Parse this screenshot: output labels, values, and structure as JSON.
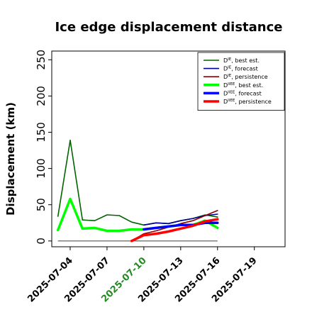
{
  "chart_data": {
    "type": "line",
    "title": "Ice edge displacement distance",
    "xlabel": "",
    "ylabel": "Displacement (km)",
    "ylim": [
      -8,
      262
    ],
    "xlim": [
      "2025-07-02T12:00",
      "2025-07-21T12:00"
    ],
    "yticks": [
      0,
      50,
      100,
      150,
      200,
      250
    ],
    "xticks": [
      "2025-07-04",
      "2025-07-07",
      "2025-07-10",
      "2025-07-13",
      "2025-07-16",
      "2025-07-19"
    ],
    "highlight_xtick": "2025-07-10",
    "highlight_color": "#228B22",
    "legend_position": "top-right",
    "baseline": {
      "name": "",
      "color": "#555555",
      "x_start": "2025-07-03",
      "x_end": "2025-07-16",
      "y": 0
    },
    "series": [
      {
        "name": "D<sup>IE</sup>, best est.",
        "color": "#006400",
        "width": 1.6,
        "x": [
          "2025-07-03",
          "2025-07-04",
          "2025-07-05",
          "2025-07-06",
          "2025-07-07",
          "2025-07-08",
          "2025-07-09",
          "2025-07-10",
          "2025-07-11",
          "2025-07-12",
          "2025-07-13",
          "2025-07-14",
          "2025-07-15",
          "2025-07-16"
        ],
        "y": [
          34,
          139,
          29,
          28,
          36,
          35,
          26,
          22,
          25,
          24,
          28,
          31,
          36,
          33
        ]
      },
      {
        "name": "D<sup>IE</sup>, forecast",
        "color": "#00008B",
        "width": 1.6,
        "x": [
          "2025-07-10",
          "2025-07-11",
          "2025-07-12",
          "2025-07-13",
          "2025-07-14",
          "2025-07-15",
          "2025-07-16"
        ],
        "y": [
          22,
          25,
          24,
          28,
          31,
          35,
          37
        ]
      },
      {
        "name": "D<sup>IE</sup>, persistence",
        "color": "#8B0000",
        "width": 1.6,
        "x": [
          "2025-07-09",
          "2025-07-10",
          "2025-07-11",
          "2025-07-12",
          "2025-07-13",
          "2025-07-14",
          "2025-07-15",
          "2025-07-16"
        ],
        "y": [
          0,
          10,
          14,
          19,
          24,
          28,
          35,
          42
        ]
      },
      {
        "name": "D<sup>IIEE</sup>, best est.",
        "color": "#00FF00",
        "width": 3.5,
        "x": [
          "2025-07-03",
          "2025-07-04",
          "2025-07-05",
          "2025-07-06",
          "2025-07-07",
          "2025-07-08",
          "2025-07-09",
          "2025-07-10",
          "2025-07-11",
          "2025-07-12",
          "2025-07-13",
          "2025-07-14",
          "2025-07-15",
          "2025-07-16"
        ],
        "y": [
          15,
          58,
          17,
          18,
          14,
          14,
          16,
          16,
          18,
          20,
          22,
          22,
          28,
          18
        ]
      },
      {
        "name": "D<sup>IIEE</sup>, forecast",
        "color": "#0000FF",
        "width": 3.5,
        "x": [
          "2025-07-10",
          "2025-07-11",
          "2025-07-12",
          "2025-07-13",
          "2025-07-14",
          "2025-07-15",
          "2025-07-16"
        ],
        "y": [
          16,
          18,
          20,
          22,
          22,
          25,
          25
        ]
      },
      {
        "name": "D<sup>IIEE</sup>, persistence",
        "color": "#FF0000",
        "width": 3.5,
        "x": [
          "2025-07-09",
          "2025-07-10",
          "2025-07-11",
          "2025-07-12",
          "2025-07-13",
          "2025-07-14",
          "2025-07-15",
          "2025-07-16"
        ],
        "y": [
          0,
          8,
          10,
          13,
          17,
          21,
          27,
          30
        ]
      }
    ]
  }
}
